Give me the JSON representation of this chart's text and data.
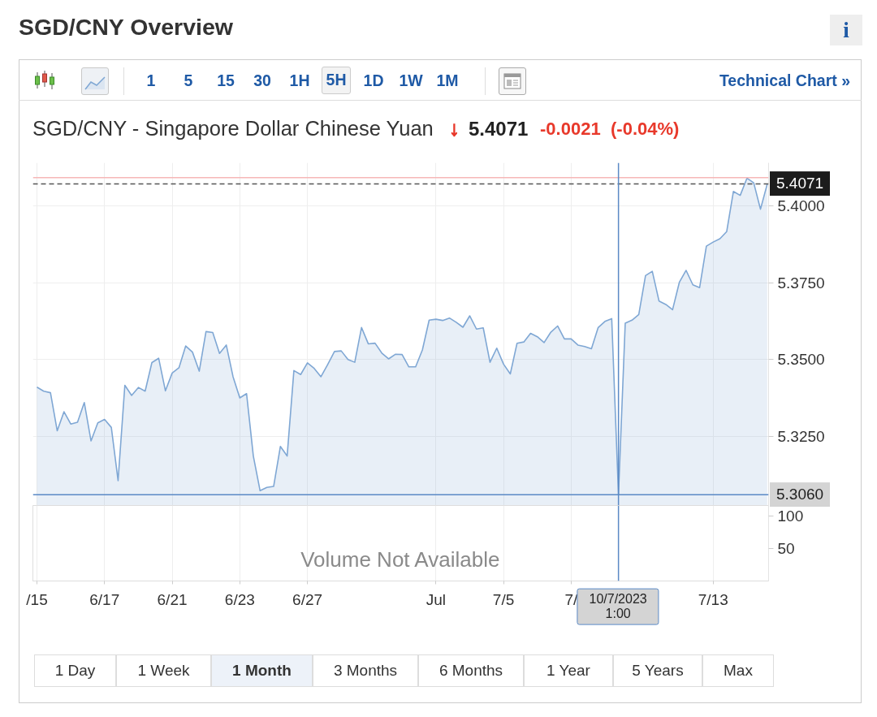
{
  "chart_data": [
    {
      "type": "area",
      "title": "SGD/CNY Overview",
      "subtitle": "SGD/CNY - Singapore Dollar Chinese Yuan",
      "annotations": [
        "i",
        "1 5",
        "15",
        "30",
        "1H",
        "5H",
        "1D",
        "1W",
        "1M",
        "Technical Chart »",
        "↓",
        "5.4071",
        "-0.0021",
        "(-0.04%)"
      ],
      "categories": [
        "/15",
        null,
        null,
        null,
        null,
        null,
        null,
        null,
        null,
        null,
        "6/17",
        null,
        null,
        null,
        null,
        null,
        null,
        null,
        null,
        null,
        "6/21",
        null,
        null,
        null,
        null,
        null,
        null,
        null,
        null,
        null,
        "6/23",
        null,
        null,
        null,
        null,
        null,
        null,
        null,
        null,
        null,
        "6/27",
        null,
        null,
        null,
        null,
        null,
        null,
        null,
        null,
        null,
        null,
        null,
        null,
        null,
        null,
        null,
        null,
        null,
        null,
        "Jul",
        null,
        null,
        null,
        null,
        null,
        null,
        null,
        null,
        null,
        "7/5",
        null,
        null,
        null,
        null,
        null,
        null,
        null,
        null,
        null,
        "7/",
        null,
        null,
        null,
        null,
        null,
        null,
        "10/7/2023 1:00",
        null,
        null,
        null,
        null,
        null,
        null,
        null,
        null,
        null,
        null,
        null,
        null,
        null,
        "7/13",
        null,
        null,
        null,
        null,
        null,
        null,
        null,
        null
      ],
      "series": [
        {
          "color": "#7fa7d4",
          "values": [
            5.341,
            5.3397,
            5.3392,
            5.3268,
            5.333,
            5.329,
            5.3296,
            5.336,
            5.3235,
            5.3294,
            5.3305,
            5.3279,
            5.3106,
            5.3416,
            5.3383,
            5.3409,
            5.3397,
            5.349,
            5.3504,
            5.3398,
            5.3456,
            5.3473,
            5.3544,
            5.3524,
            5.3462,
            5.3591,
            5.3588,
            5.352,
            5.3547,
            5.3444,
            5.3375,
            5.3389,
            5.3186,
            5.3073,
            5.3084,
            5.3087,
            5.3217,
            5.3186,
            5.3464,
            5.3451,
            5.3489,
            5.3471,
            5.3444,
            5.3484,
            5.3526,
            5.3528,
            5.35,
            5.3491,
            5.3604,
            5.3551,
            5.3553,
            5.3521,
            5.3502,
            5.3517,
            5.3516,
            5.3476,
            5.3476,
            5.3531,
            5.3628,
            5.3631,
            5.3627,
            5.3635,
            5.3621,
            5.3605,
            5.3642,
            5.3599,
            5.3603,
            5.3491,
            5.3537,
            5.3485,
            5.3453,
            5.3553,
            5.3557,
            5.3585,
            5.3574,
            5.3555,
            5.3589,
            5.3609,
            5.3567,
            5.3567,
            5.3547,
            5.3542,
            5.3535,
            5.3604,
            5.3624,
            5.3633,
            5.306,
            5.3618,
            5.3628,
            5.3646,
            5.3773,
            5.3787,
            5.369,
            5.3679,
            5.3662,
            5.3751,
            5.379,
            5.3743,
            5.3734,
            5.3869,
            5.3882,
            5.3893,
            5.3916,
            5.4047,
            5.4034,
            5.409,
            5.4075,
            5.3989,
            5.4071
          ]
        }
      ],
      "ylim": [
        5.3025,
        5.414
      ],
      "yticks": [
        {
          "value": 5.325,
          "label": "5.3250"
        },
        {
          "value": 5.35,
          "label": "5.3500"
        },
        {
          "value": 5.375,
          "label": "5.3750"
        },
        {
          "value": 5.4,
          "label": "5.4000"
        }
      ],
      "grid": true,
      "tick_labels": "y",
      "ref_lines": [
        {
          "axis": "y",
          "value": 5.4092,
          "color": "#f6b8b8"
        },
        {
          "axis": "y",
          "value": 5.4071,
          "label": "5.4071",
          "color": "#555555",
          "line_style": "dashed"
        },
        {
          "axis": "y",
          "value": 5.306,
          "label": "5.3060",
          "color": "#5b8ac6"
        },
        {
          "axis": "x",
          "value": "10/7/2023 1:00",
          "color": "#5b8ac6"
        }
      ]
    },
    {
      "type": "bar",
      "categories": [
        "/15",
        null,
        null,
        null,
        null,
        null,
        null,
        null,
        null,
        null,
        "6/17",
        null,
        null,
        null,
        null,
        null,
        null,
        null,
        null,
        null,
        "6/21",
        null,
        null,
        null,
        null,
        null,
        null,
        null,
        null,
        null,
        "6/23",
        null,
        null,
        null,
        null,
        null,
        null,
        null,
        null,
        null,
        "6/27",
        null,
        null,
        null,
        null,
        null,
        null,
        null,
        null,
        null,
        null,
        null,
        null,
        null,
        null,
        null,
        null,
        null,
        null,
        "Jul",
        null,
        null,
        null,
        null,
        null,
        null,
        null,
        null,
        null,
        "7/5",
        null,
        null,
        null,
        null,
        null,
        null,
        null,
        null,
        null,
        "7/",
        null,
        null,
        null,
        null,
        null,
        null,
        "10/7/2023 1:00",
        null,
        null,
        null,
        null,
        null,
        null,
        null,
        null,
        null,
        null,
        null,
        null,
        null,
        "7/13",
        null,
        null,
        null,
        null,
        null,
        null,
        null,
        null
      ],
      "values": [
        null,
        null,
        null,
        null,
        null,
        null,
        null,
        null,
        null,
        null,
        null,
        null,
        null,
        null,
        null,
        null,
        null,
        null,
        null,
        null,
        null,
        null,
        null,
        null,
        null,
        null,
        null,
        null,
        null,
        null,
        null,
        null,
        null,
        null,
        null,
        null,
        null,
        null,
        null,
        null,
        null,
        null,
        null,
        null,
        null,
        null,
        null,
        null,
        null,
        null,
        null,
        null,
        null,
        null,
        null,
        null,
        null,
        null,
        null,
        null,
        null,
        null,
        null,
        null,
        null,
        null,
        null,
        null,
        null,
        null,
        null,
        null,
        null,
        null,
        null,
        null,
        null,
        null,
        null,
        null,
        null,
        null,
        null,
        null,
        null,
        null,
        null,
        null,
        null,
        null,
        null,
        null,
        null,
        null,
        null,
        null,
        null,
        null,
        null,
        null,
        null,
        null,
        null,
        null,
        null,
        null,
        null,
        null,
        null
      ],
      "ylim": [
        0,
        116
      ],
      "yticks": [
        50,
        100
      ],
      "grid": "x",
      "annotations": [
        "Volume Not Available",
        "1 Day",
        "1 Week",
        "1 Month",
        "3 Months",
        "6 Months",
        "1 Year",
        "5 Years",
        "Max"
      ],
      "ref_lines": [
        {
          "axis": "x",
          "value": "10/7/2023 1:00",
          "color": "#5b8ac6"
        }
      ]
    }
  ]
}
